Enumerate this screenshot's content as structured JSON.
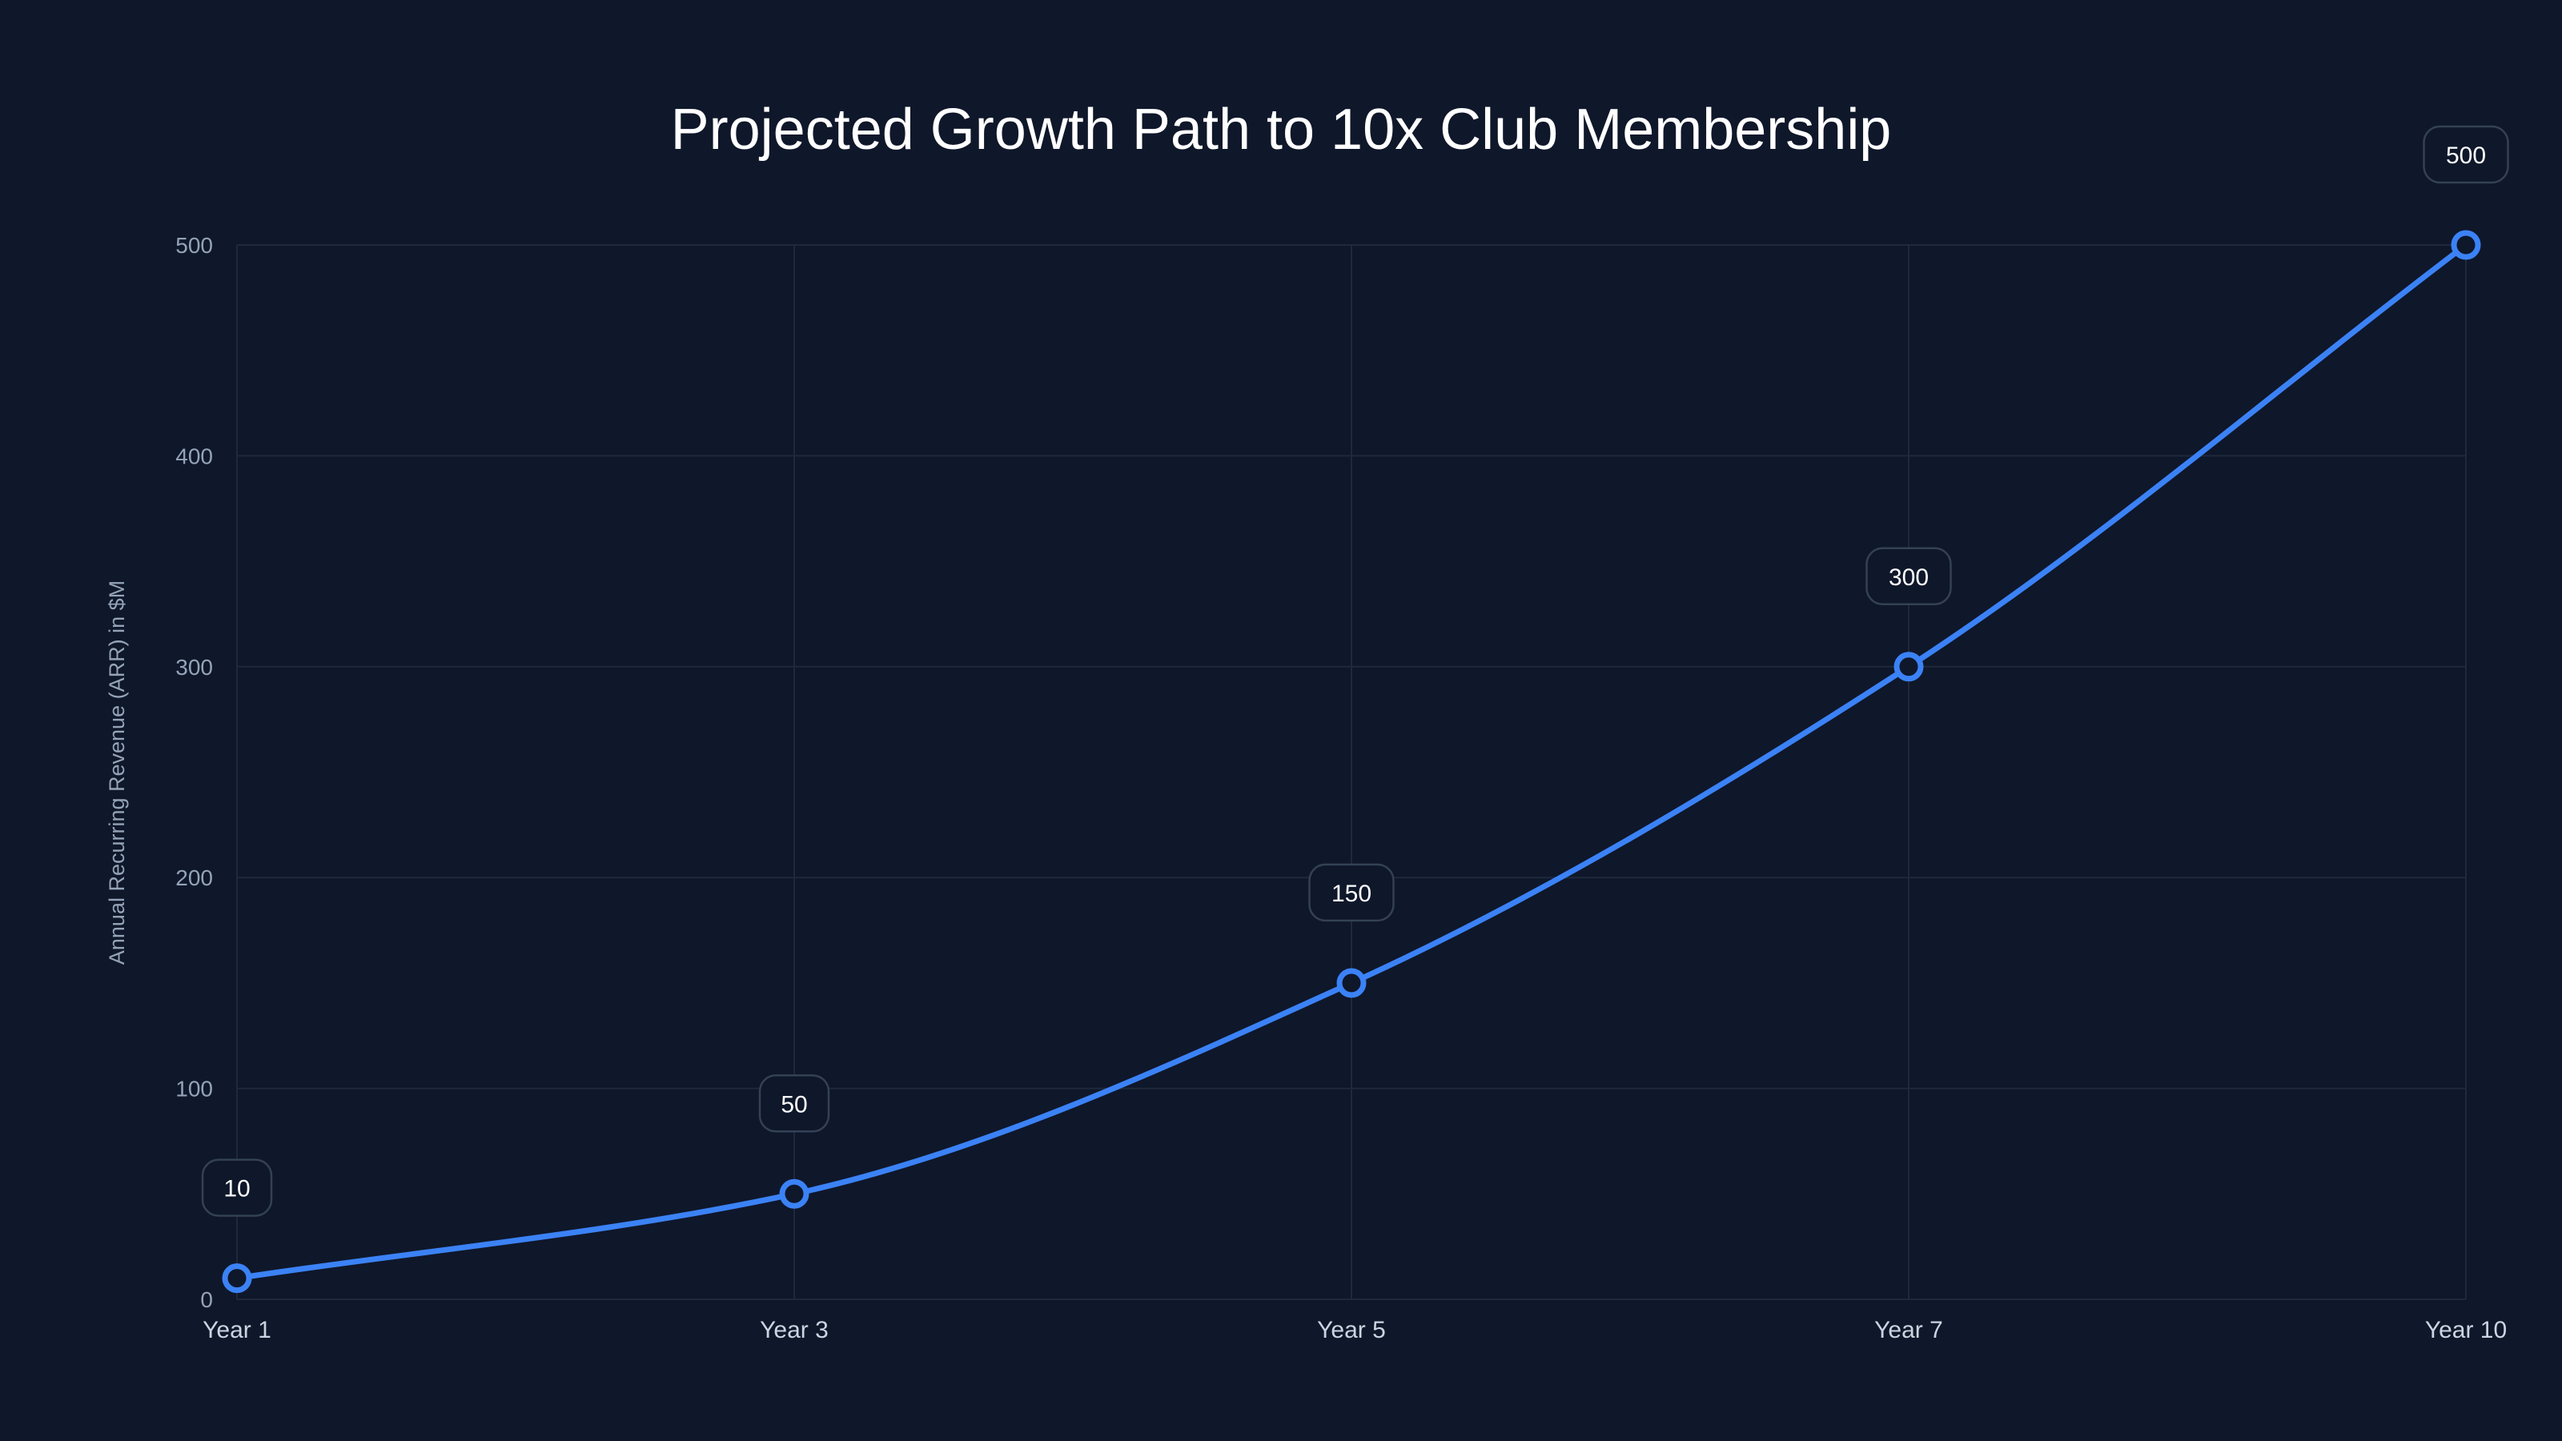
{
  "chart_data": {
    "type": "line",
    "title": "Projected Growth Path to 10x Club Membership",
    "xlabel": "",
    "ylabel": "Annual Recurring Revenue (ARR) in $M",
    "categories": [
      "Year 1",
      "Year 3",
      "Year 5",
      "Year 7",
      "Year 10"
    ],
    "series": [
      {
        "name": "ARR",
        "values": [
          10,
          50,
          150,
          300,
          500
        ],
        "color": "#3b82f6"
      }
    ],
    "data_labels": [
      "10",
      "50",
      "150",
      "300",
      "500"
    ],
    "ylim": [
      0,
      500
    ],
    "yticks": [
      0,
      100,
      200,
      300,
      400,
      500
    ],
    "grid": true,
    "legend": "none"
  }
}
